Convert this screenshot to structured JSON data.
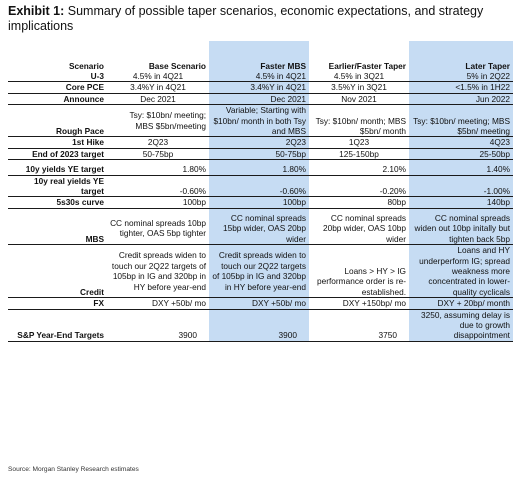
{
  "title": {
    "lead": "Exhibit 1:",
    "text": "Summary of possible taper scenarios, economic expectations, and strategy implications"
  },
  "columns": [
    "Scenario",
    "Base Scenario",
    "Faster MBS",
    "Earlier/Faster Taper",
    "Later Taper"
  ],
  "rows": {
    "u3": [
      "U-3",
      "4.5% in 4Q21",
      "4.5% in 4Q21",
      "4.5% in 3Q21",
      "5% in 2Q22"
    ],
    "core_pce": [
      "Core PCE",
      "3.4%Y in 4Q21",
      "3.4%Y in 4Q21",
      "3.5%Y in 3Q21",
      "<1.5% in 1H22"
    ],
    "announce": [
      "Announce",
      "Dec 2021",
      "Dec 2021",
      "Nov 2021",
      "Jun 2022"
    ],
    "rough_pace": [
      "Rough Pace",
      "Tsy: $10bn/ meeting; MBS $5bn/meeting",
      "Variable; Starting with $10bn/ month in both Tsy and MBS",
      "Tsy: $10bn/ month; MBS $5bn/ month",
      "Tsy: $10bn/ meeting; MBS $5bn/ meeting"
    ],
    "first_hike": [
      "1st Hike",
      "2Q23",
      "2Q23",
      "1Q23",
      "4Q23"
    ],
    "end_2023": [
      "End of 2023 target",
      "50-75bp",
      "50-75bp",
      "125-150bp",
      "25-50bp"
    ],
    "y10_ye": [
      "10y yields YE target",
      "1.80%",
      "1.80%",
      "2.10%",
      "1.40%"
    ],
    "y10_real": [
      "10y real yields YE target",
      "-0.60%",
      "-0.60%",
      "-0.20%",
      "-1.00%"
    ],
    "curve_5s30s": [
      "5s30s curve",
      "100bp",
      "100bp",
      "80bp",
      "140bp"
    ],
    "mbs": [
      "MBS",
      "CC nominal spreads 10bp tighter, OAS 5bp tighter",
      "CC nominal spreads 15bp wider, OAS 20bp wider",
      "CC nominal spreads 20bp wider, OAS 10bp wider",
      "CC nominal spreads widen out 10bp initally but tighten back 5bp"
    ],
    "credit": [
      "Credit",
      "Credit spreads widen to touch our 2Q22 targets of 105bp in IG and 320bp in HY before year-end",
      "Credit spreads widen to touch our 2Q22 targets of 105bp in IG and 320bp in HY before year-end",
      "Loans > HY > IG performance order is re-established.",
      "Loans and HY underperform IG; spread weakness more concentrated in lower-quality cyclicals"
    ],
    "fx": [
      "FX",
      "DXY +50b/ mo",
      "DXY +50b/ mo",
      "DXY +150bp/ mo",
      "DXY + 20bp/ month"
    ],
    "sp_targets": [
      "S&P Year-End Targets",
      "3900",
      "3900",
      "3750",
      "3250, assuming delay is due to growth disappointment"
    ]
  },
  "source": "Source: Morgan Stanley Research estimates",
  "colors": {
    "highlight": "#c6dcf3",
    "rule": "#1a1a1a"
  }
}
